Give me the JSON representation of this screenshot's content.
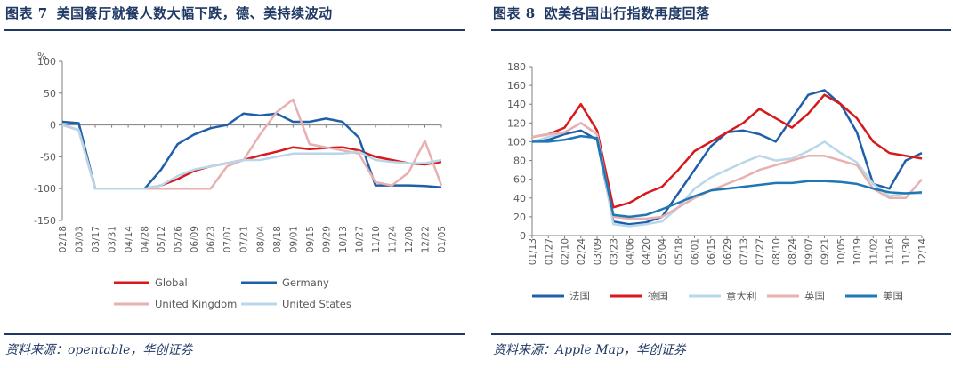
{
  "left": {
    "title_num": "图表 7",
    "title_text": "美国餐厅就餐人数大幅下跌，德、美持续波动",
    "source": "资料来源：opentable，华创证券"
  },
  "right": {
    "title_num": "图表 8",
    "title_text": "欧美各国出行指数再度回落",
    "source": "资料来源：Apple Map，华创证券"
  },
  "chart_data": [
    {
      "type": "line",
      "unit": "%",
      "ylim": [
        -150,
        100
      ],
      "yticks": [
        -150,
        -100,
        -50,
        0,
        50,
        100
      ],
      "categories": [
        "02/18",
        "03/03",
        "03/17",
        "03/31",
        "04/14",
        "04/28",
        "05/12",
        "05/26",
        "06/09",
        "06/23",
        "07/07",
        "07/21",
        "08/04",
        "08/18",
        "09/01",
        "09/15",
        "09/29",
        "10/13",
        "10/27",
        "11/10",
        "11/24",
        "12/08",
        "12/22",
        "01/05"
      ],
      "legend_position": "bottom",
      "series": [
        {
          "name": "Global",
          "color": "#d7191c",
          "values": [
            0,
            -8,
            -100,
            -100,
            -100,
            -100,
            -95,
            -85,
            -72,
            -65,
            -60,
            -55,
            -48,
            -42,
            -35,
            -38,
            -36,
            -35,
            -40,
            -50,
            -55,
            -60,
            -62,
            -58
          ]
        },
        {
          "name": "Germany",
          "color": "#1f5fa8",
          "values": [
            5,
            3,
            -100,
            -100,
            -100,
            -100,
            -70,
            -30,
            -15,
            -5,
            0,
            18,
            15,
            18,
            5,
            5,
            10,
            5,
            -20,
            -95,
            -95,
            -95,
            -96,
            -98
          ]
        },
        {
          "name": "United Kingdom",
          "color": "#e8b0b0",
          "values": [
            0,
            -8,
            -100,
            -100,
            -100,
            -100,
            -100,
            -100,
            -100,
            -100,
            -65,
            -55,
            -15,
            20,
            40,
            -30,
            -35,
            -40,
            -45,
            -90,
            -95,
            -75,
            -25,
            -95
          ]
        },
        {
          "name": "United States",
          "color": "#b9d7ea",
          "values": [
            0,
            -8,
            -100,
            -100,
            -100,
            -100,
            -95,
            -80,
            -70,
            -65,
            -60,
            -55,
            -55,
            -50,
            -45,
            -45,
            -45,
            -45,
            -42,
            -55,
            -58,
            -60,
            -60,
            -55
          ]
        }
      ]
    },
    {
      "type": "line",
      "ylim": [
        0,
        180
      ],
      "yticks": [
        0,
        20,
        40,
        60,
        80,
        100,
        120,
        140,
        160,
        180
      ],
      "categories": [
        "01/13",
        "01/27",
        "02/10",
        "02/24",
        "03/09",
        "03/23",
        "04/06",
        "04/20",
        "05/04",
        "05/18",
        "06/01",
        "06/15",
        "06/29",
        "07/13",
        "07/27",
        "08/10",
        "08/24",
        "09/07",
        "09/21",
        "10/05",
        "10/19",
        "11/02",
        "11/16",
        "11/30",
        "12/14"
      ],
      "legend_position": "bottom",
      "series": [
        {
          "name": "法国",
          "color": "#1f5fa8",
          "values": [
            100,
            102,
            108,
            112,
            102,
            15,
            12,
            14,
            20,
            45,
            70,
            95,
            110,
            112,
            108,
            100,
            125,
            150,
            155,
            140,
            110,
            55,
            50,
            80,
            88
          ]
        },
        {
          "name": "德国",
          "color": "#d7191c",
          "values": [
            105,
            108,
            115,
            140,
            112,
            30,
            35,
            45,
            52,
            70,
            90,
            100,
            110,
            120,
            135,
            125,
            115,
            130,
            150,
            140,
            125,
            100,
            88,
            85,
            82
          ]
        },
        {
          "name": "意大利",
          "color": "#b9d7ea",
          "values": [
            100,
            105,
            110,
            120,
            108,
            12,
            10,
            12,
            15,
            30,
            50,
            62,
            70,
            78,
            85,
            80,
            82,
            90,
            100,
            88,
            78,
            55,
            42,
            45,
            45
          ]
        },
        {
          "name": "英国",
          "color": "#e8b0b0",
          "values": [
            105,
            108,
            110,
            120,
            108,
            20,
            18,
            18,
            20,
            30,
            40,
            48,
            55,
            62,
            70,
            75,
            80,
            85,
            85,
            80,
            75,
            50,
            40,
            40,
            60
          ]
        },
        {
          "name": "美国",
          "color": "#1f78b4",
          "values": [
            100,
            100,
            102,
            106,
            104,
            22,
            20,
            22,
            28,
            35,
            42,
            48,
            50,
            52,
            54,
            56,
            56,
            58,
            58,
            57,
            55,
            50,
            46,
            45,
            46
          ]
        }
      ]
    }
  ]
}
